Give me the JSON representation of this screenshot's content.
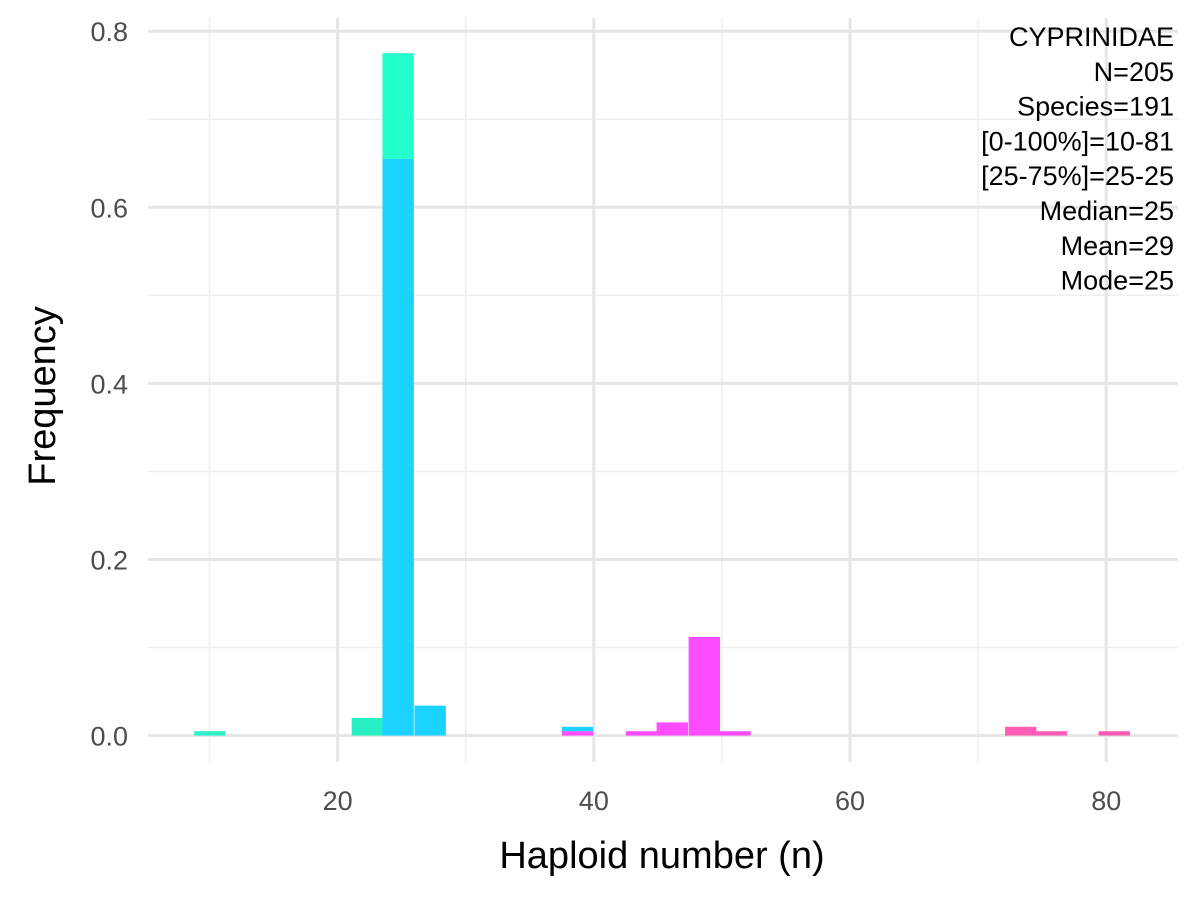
{
  "chart_data": {
    "type": "bar",
    "stacked": true,
    "title": "",
    "xlabel": "Haploid number (n)",
    "ylabel": "Frequency",
    "xlim": [
      5.2,
      85.6
    ],
    "ylim": [
      -0.03,
      0.815
    ],
    "x_ticks": [
      20,
      40,
      60,
      80
    ],
    "y_ticks": [
      0.0,
      0.2,
      0.4,
      0.6,
      0.8
    ],
    "x_tick_labels": [
      "20",
      "40",
      "60",
      "80"
    ],
    "y_tick_labels": [
      "0.0",
      "0.2",
      "0.4",
      "0.6",
      "0.8"
    ],
    "bin_width": 2.45,
    "grid": true,
    "legend": "none",
    "annotations": [
      "CYPRINIDAE",
      "N=205",
      "Species=191",
      "[0-100%]=10-81",
      "[25-75%]=25-25",
      "Median=25",
      "Mean=29",
      "Mode=25"
    ],
    "bars": [
      {
        "x_start": 8.8,
        "segments": [
          {
            "value": 0.005,
            "color": "#2ef0c8"
          }
        ]
      },
      {
        "x_start": 21.1,
        "segments": [
          {
            "value": 0.02,
            "color": "#28f0c4"
          }
        ]
      },
      {
        "x_start": 23.5,
        "segments": [
          {
            "value": 0.655,
            "color": "#1cd2ff"
          },
          {
            "value": 0.12,
            "color": "#22ffcc"
          }
        ]
      },
      {
        "x_start": 26.0,
        "segments": [
          {
            "value": 0.034,
            "color": "#1cd2ff"
          }
        ]
      },
      {
        "x_start": 37.5,
        "segments": [
          {
            "value": 0.005,
            "color": "#ff4cff"
          },
          {
            "value": 0.005,
            "color": "#1cd2ff"
          }
        ]
      },
      {
        "x_start": 42.5,
        "segments": [
          {
            "value": 0.005,
            "color": "#ff4cff"
          }
        ]
      },
      {
        "x_start": 44.9,
        "segments": [
          {
            "value": 0.015,
            "color": "#ff4cff"
          }
        ]
      },
      {
        "x_start": 47.4,
        "segments": [
          {
            "value": 0.112,
            "color": "#ff4cff"
          }
        ]
      },
      {
        "x_start": 49.8,
        "segments": [
          {
            "value": 0.005,
            "color": "#ff4cff"
          }
        ]
      },
      {
        "x_start": 72.1,
        "segments": [
          {
            "value": 0.01,
            "color": "#ff5cb4"
          }
        ]
      },
      {
        "x_start": 74.5,
        "segments": [
          {
            "value": 0.005,
            "color": "#ff5cb4"
          }
        ]
      },
      {
        "x_start": 79.4,
        "segments": [
          {
            "value": 0.005,
            "color": "#ff5cb4"
          }
        ]
      }
    ]
  }
}
